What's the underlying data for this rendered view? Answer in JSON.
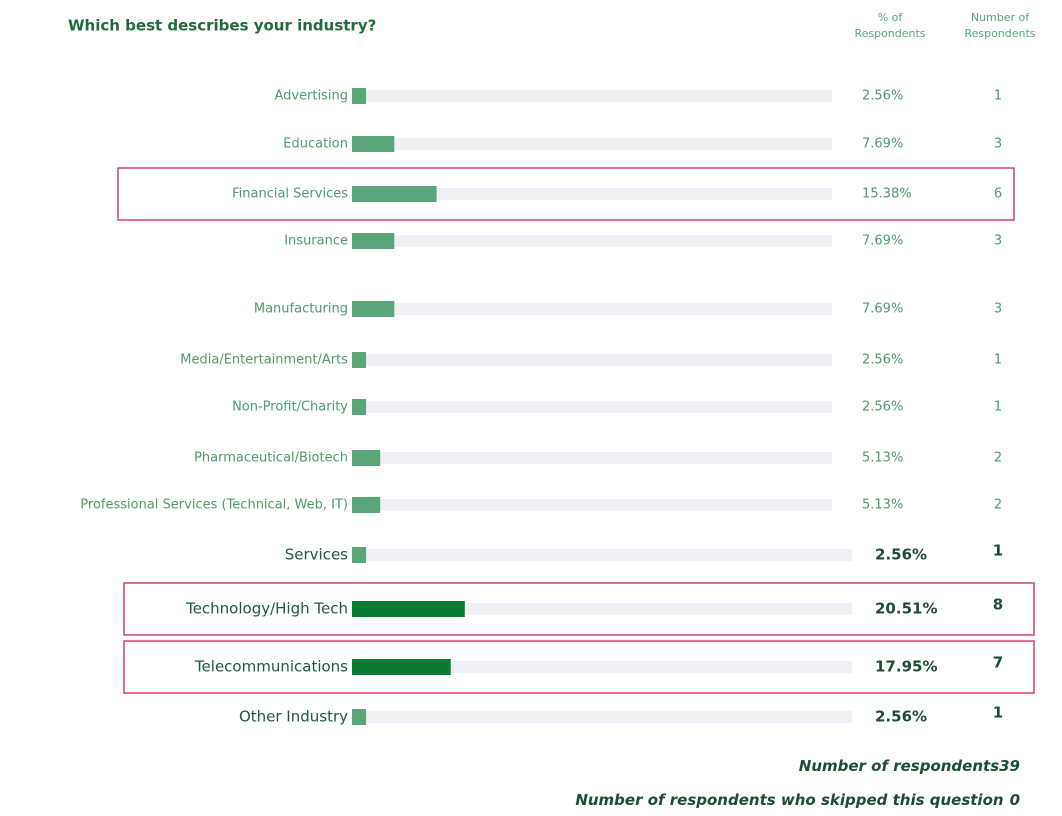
{
  "chart_data": {
    "type": "bar",
    "title": "Which best describes your industry?",
    "pct_header": [
      "% of",
      "Respondents"
    ],
    "count_header": [
      "Number of",
      "Respondents"
    ],
    "categories": [
      "Advertising",
      "Education",
      "Financial Services",
      "Insurance",
      "Manufacturing",
      "Media/Entertainment/Arts",
      "Non-Profit/Charity",
      "Pharmaceutical/Biotech",
      "Professional Services (Technical, Web, IT)",
      "Services",
      "Technology/High Tech",
      "Telecommunications",
      "Other Industry"
    ],
    "values": [
      2.56,
      7.69,
      15.38,
      7.69,
      7.69,
      2.56,
      2.56,
      5.13,
      5.13,
      2.56,
      20.51,
      17.95,
      2.56
    ],
    "value_labels": [
      "2.56%",
      "7.69%",
      "15.38%",
      "7.69%",
      "7.69%",
      "2.56%",
      "2.56%",
      "5.13%",
      "5.13%",
      "2.56%",
      "20.51%",
      "17.95%",
      "2.56%"
    ],
    "counts": [
      1,
      3,
      6,
      3,
      3,
      1,
      1,
      2,
      2,
      1,
      8,
      7,
      1
    ],
    "color": "#5aa57a",
    "highlight_color": "#0b7a34",
    "highlighted": [
      2,
      10,
      11
    ],
    "respondents_label": "Number of respondents",
    "respondents": 39,
    "skipped_label": "Number of respondents who skipped this question",
    "skipped": 0
  }
}
